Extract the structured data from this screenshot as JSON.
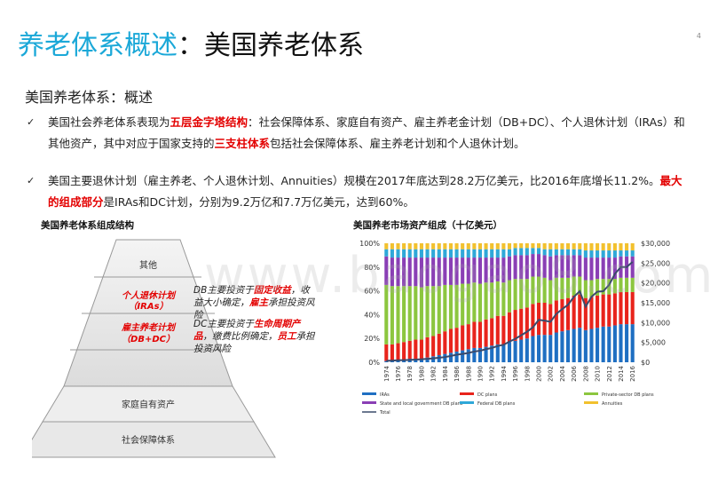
{
  "title": {
    "highlight": "养老体系概述",
    "rest": "：美国养老体系"
  },
  "page_number": "4",
  "subtitle": "美国养老体系：概述",
  "bullets": [
    {
      "check": "✓",
      "p1": "美国社会养老体系表现为",
      "h1": "五层金字塔结构",
      "p2": "：社会保障体系、家庭自有资产、雇主养老金计划（DB+DC）、个人退休计划（IRAs）和其他资产，其中对应于国家支持的",
      "h2": "三支柱体系",
      "p3": "包括社会保障体系、雇主养老计划和个人退休计划。"
    },
    {
      "check": "✓",
      "p1": "美国主要退休计划（雇主养老、个人退休计划、Annuities）规模在2017年底达到28.2万亿美元，比2016年底增长11.2%。",
      "h1": "最大的组成部分",
      "p2": "是IRAs和DC计划，分别为9.2万亿和7.7万亿美元，达到60%。"
    }
  ],
  "pyramid": {
    "title": "美国养老体系组成结构",
    "levels": [
      "其他",
      "个人退休计划",
      "（IRAs）",
      "雇主养老计划",
      "（DB+DC）",
      "家庭自有资产",
      "社会保障体系"
    ],
    "annotation1": {
      "p1": "DB主要投资于",
      "h1": "固定收益",
      "p2": "，收益大小确定，",
      "h2": "雇主",
      "p3": "承担投资风险"
    },
    "annotation2": {
      "p1": "DC主要投资于",
      "h1": "生命周期产品",
      "p2": "，缴费比例确定，",
      "h2": "员工",
      "p3": "承担投资风险"
    }
  },
  "watermark": "www.baogao8.com",
  "colors": {
    "title_blue": "#1ba8d8",
    "highlight_red": "#e30000",
    "iras": "#1f6fc2",
    "dc": "#e8241c",
    "private_db": "#8cc63f",
    "state_db": "#8a3fb5",
    "federal_db": "#2fa8d8",
    "annuities": "#f2c12e",
    "total": "#3b4a6b"
  },
  "chart_data": {
    "type": "bar",
    "title": "美国养老市场资产组成（十亿美元）",
    "categories": [
      "1974",
      "1975",
      "1976",
      "1977",
      "1978",
      "1979",
      "1980",
      "1981",
      "1982",
      "1983",
      "1984",
      "1985",
      "1986",
      "1987",
      "1988",
      "1989",
      "1990",
      "1991",
      "1992",
      "1993",
      "1994",
      "1995",
      "1996",
      "1997",
      "1998",
      "1999",
      "2000",
      "2001",
      "2002",
      "2003",
      "2004",
      "2005",
      "2006",
      "2007",
      "2008",
      "2009",
      "2010",
      "2011",
      "2012",
      "2013",
      "2014",
      "2015",
      "2016"
    ],
    "x_tick_labels": [
      "1974",
      "1976",
      "1978",
      "1980",
      "1982",
      "1984",
      "1986",
      "1988",
      "1990",
      "1992",
      "1994",
      "1996",
      "1998",
      "2000",
      "2002",
      "2004",
      "2006",
      "2008",
      "2010",
      "2012",
      "2014",
      "2016"
    ],
    "left_axis": {
      "ticks": [
        "0%",
        "20%",
        "40%",
        "60%",
        "80%",
        "100%"
      ],
      "ylim": [
        0,
        100
      ]
    },
    "right_axis": {
      "ticks": [
        "$0",
        "$5,000",
        "$10,000",
        "$15,000",
        "$20,000",
        "$25,000",
        "$30,000"
      ],
      "ylim": [
        0,
        30000
      ]
    },
    "stack_order": [
      "IRAs",
      "DC plans",
      "Private-sector DB plans",
      "State and local government DB plans",
      "Federal DB plans",
      "Annuities"
    ],
    "series": [
      {
        "name": "IRAs",
        "color_key": "iras",
        "values": [
          1,
          1,
          2,
          2,
          3,
          3,
          3,
          4,
          5,
          6,
          7,
          8,
          9,
          10,
          11,
          12,
          12,
          13,
          14,
          15,
          15,
          17,
          18,
          19,
          20,
          22,
          23,
          23,
          23,
          25,
          26,
          27,
          28,
          29,
          27,
          28,
          29,
          30,
          30,
          31,
          32,
          32,
          32
        ]
      },
      {
        "name": "DC plans",
        "color_key": "dc",
        "values": [
          14,
          14,
          14,
          15,
          15,
          16,
          16,
          17,
          17,
          18,
          19,
          20,
          20,
          21,
          21,
          22,
          22,
          23,
          23,
          24,
          24,
          25,
          26,
          26,
          26,
          27,
          27,
          27,
          26,
          27,
          27,
          27,
          28,
          28,
          27,
          27,
          27,
          27,
          27,
          27,
          27,
          27,
          27
        ]
      },
      {
        "name": "Private-sector DB plans",
        "color_key": "private_db",
        "values": [
          50,
          49,
          48,
          47,
          46,
          45,
          44,
          43,
          42,
          40,
          39,
          37,
          36,
          35,
          34,
          33,
          32,
          31,
          30,
          29,
          28,
          27,
          26,
          25,
          24,
          23,
          22,
          21,
          20,
          19,
          18,
          17,
          16,
          15,
          15,
          14,
          14,
          13,
          13,
          12,
          12,
          12,
          12
        ]
      },
      {
        "name": "State and local government DB plans",
        "color_key": "state_db",
        "values": [
          24,
          24,
          24,
          24,
          24,
          24,
          25,
          24,
          24,
          24,
          23,
          23,
          23,
          22,
          22,
          21,
          22,
          21,
          21,
          20,
          21,
          20,
          20,
          20,
          20,
          19,
          19,
          19,
          20,
          19,
          19,
          19,
          18,
          18,
          19,
          19,
          18,
          18,
          18,
          18,
          18,
          18,
          18
        ]
      },
      {
        "name": "Federal DB plans",
        "color_key": "federal_db",
        "values": [
          6,
          7,
          7,
          7,
          7,
          7,
          7,
          7,
          7,
          7,
          7,
          7,
          7,
          7,
          7,
          7,
          7,
          7,
          7,
          7,
          7,
          6,
          6,
          6,
          6,
          5,
          5,
          5,
          6,
          5,
          5,
          5,
          5,
          5,
          6,
          6,
          6,
          6,
          6,
          6,
          5,
          5,
          5
        ]
      },
      {
        "name": "Annuities",
        "color_key": "annuities",
        "values": [
          5,
          5,
          5,
          5,
          5,
          5,
          5,
          5,
          5,
          5,
          5,
          5,
          5,
          5,
          5,
          5,
          5,
          5,
          5,
          5,
          5,
          5,
          4,
          4,
          4,
          4,
          4,
          5,
          5,
          5,
          5,
          5,
          5,
          5,
          6,
          6,
          6,
          6,
          6,
          6,
          6,
          6,
          6
        ]
      }
    ],
    "line": {
      "name": "Total",
      "color_key": "total",
      "axis": "right",
      "values": [
        370,
        430,
        500,
        540,
        600,
        670,
        760,
        860,
        990,
        1150,
        1300,
        1600,
        1900,
        2100,
        2350,
        2700,
        2900,
        3300,
        3600,
        4100,
        4400,
        5200,
        5900,
        6800,
        7700,
        8800,
        10700,
        10500,
        10200,
        12200,
        13400,
        14500,
        16500,
        17900,
        14000,
        16500,
        17800,
        17900,
        19500,
        22300,
        24000,
        24000,
        25300
      ]
    },
    "legend": {
      "placement": "bottom",
      "labels": [
        "IRAs",
        "DC plans",
        "Private-sector DB plans",
        "State and local government DB plans",
        "Federal DB plans",
        "Annuities",
        "Total"
      ]
    }
  }
}
